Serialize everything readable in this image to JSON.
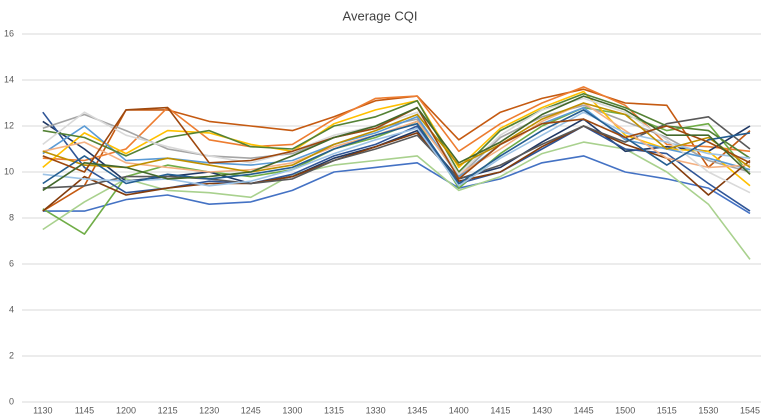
{
  "chart_data": {
    "type": "line",
    "title": "Average CQI",
    "categories": [
      "1130",
      "1145",
      "1200",
      "1215",
      "1230",
      "1245",
      "1300",
      "1315",
      "1330",
      "1345",
      "1400",
      "1415",
      "1430",
      "1445",
      "1500",
      "1515",
      "1530",
      "1545"
    ],
    "ylim": [
      0,
      16
    ],
    "yticks": [
      0,
      2,
      4,
      6,
      8,
      10,
      12,
      14,
      16
    ],
    "grid": true,
    "series": [
      {
        "color": "#c55a11",
        "values": [
          8.3,
          9.4,
          12.7,
          12.7,
          12.2,
          12.0,
          11.8,
          12.4,
          13.1,
          13.3,
          11.4,
          12.6,
          13.2,
          13.6,
          13.0,
          12.9,
          10.2,
          11.8
        ]
      },
      {
        "color": "#ed7d31",
        "values": [
          10.6,
          10.5,
          11.0,
          12.8,
          11.4,
          11.1,
          11.2,
          12.3,
          13.2,
          13.3,
          10.9,
          12.1,
          13.0,
          13.7,
          12.9,
          11.2,
          11.1,
          10.9
        ]
      },
      {
        "color": "#4472c4",
        "values": [
          8.3,
          8.3,
          8.8,
          9.0,
          8.6,
          8.7,
          9.2,
          10.0,
          10.2,
          10.4,
          9.3,
          9.7,
          10.4,
          10.7,
          10.0,
          9.7,
          9.3,
          8.2
        ]
      },
      {
        "color": "#a9d18e",
        "values": [
          7.5,
          8.7,
          9.7,
          9.2,
          9.1,
          8.9,
          9.9,
          10.3,
          10.5,
          10.7,
          9.2,
          9.8,
          10.8,
          11.3,
          11.0,
          10.0,
          8.6,
          6.2
        ]
      },
      {
        "color": "#70ad47",
        "values": [
          8.4,
          7.3,
          9.8,
          10.3,
          10.0,
          9.8,
          10.1,
          11.0,
          11.5,
          12.2,
          9.3,
          10.8,
          12.0,
          12.8,
          12.5,
          11.8,
          12.1,
          9.9
        ]
      },
      {
        "color": "#203864",
        "values": [
          12.2,
          11.0,
          9.6,
          9.8,
          10.0,
          9.5,
          9.8,
          10.6,
          11.1,
          11.8,
          9.7,
          10.2,
          11.3,
          12.3,
          10.9,
          11.1,
          10.9,
          12.0
        ]
      },
      {
        "color": "#2f5597",
        "values": [
          12.6,
          10.2,
          9.1,
          9.3,
          9.6,
          9.5,
          9.9,
          10.7,
          11.2,
          12.0,
          9.5,
          10.0,
          11.0,
          12.0,
          11.0,
          10.8,
          9.5,
          8.3
        ]
      },
      {
        "color": "#a5a5a5",
        "values": [
          11.9,
          12.5,
          11.8,
          11.0,
          10.7,
          10.6,
          10.8,
          11.5,
          11.9,
          12.3,
          9.8,
          11.5,
          12.4,
          12.9,
          12.2,
          11.5,
          10.5,
          10.0
        ]
      },
      {
        "color": "#ffc000",
        "values": [
          10.2,
          11.7,
          10.8,
          11.8,
          11.7,
          11.2,
          10.9,
          12.1,
          12.7,
          13.1,
          10.2,
          11.9,
          12.8,
          13.5,
          11.6,
          11.0,
          10.9,
          9.4
        ]
      },
      {
        "color": "#5b9bd5",
        "values": [
          10.8,
          12.0,
          10.5,
          10.6,
          10.4,
          10.3,
          10.5,
          11.2,
          11.7,
          12.4,
          9.8,
          11.2,
          12.1,
          12.8,
          11.4,
          11.0,
          10.6,
          10.1
        ]
      },
      {
        "color": "#843c0c",
        "values": [
          8.3,
          9.8,
          9.0,
          9.3,
          9.5,
          9.5,
          9.8,
          10.5,
          11.1,
          11.7,
          9.6,
          10.0,
          11.1,
          12.0,
          11.2,
          10.6,
          9.0,
          10.5
        ]
      },
      {
        "color": "#595959",
        "values": [
          9.3,
          9.4,
          9.8,
          9.8,
          9.7,
          9.5,
          9.7,
          10.5,
          11.0,
          11.6,
          9.7,
          10.3,
          11.2,
          12.0,
          11.3,
          12.1,
          12.4,
          11.0
        ]
      },
      {
        "color": "#548235",
        "values": [
          11.8,
          11.5,
          10.7,
          11.5,
          11.8,
          11.1,
          11.0,
          12.0,
          12.4,
          13.1,
          10.0,
          11.8,
          12.7,
          13.4,
          12.8,
          12.0,
          11.8,
          10.6
        ]
      },
      {
        "color": "#f4b183",
        "values": [
          10.9,
          11.3,
          10.4,
          10.2,
          10.0,
          10.1,
          10.4,
          11.1,
          11.6,
          12.2,
          9.9,
          11.0,
          12.2,
          13.0,
          11.8,
          10.6,
          10.2,
          10.3
        ]
      },
      {
        "color": "#9dc3e6",
        "values": [
          9.9,
          9.7,
          9.6,
          9.7,
          9.4,
          9.6,
          10.1,
          10.8,
          11.4,
          11.9,
          9.4,
          10.6,
          11.6,
          12.6,
          11.7,
          11.3,
          10.8,
          10.6
        ]
      },
      {
        "color": "#d9d9d9",
        "values": [
          11.2,
          12.6,
          11.6,
          11.1,
          10.7,
          10.4,
          10.9,
          11.6,
          12.0,
          12.6,
          9.9,
          11.6,
          12.7,
          13.2,
          12.6,
          11.4,
          10.0,
          9.1
        ]
      },
      {
        "color": "#bf9000",
        "values": [
          10.9,
          10.3,
          10.2,
          10.6,
          10.3,
          10.0,
          10.3,
          11.2,
          11.8,
          12.5,
          10.3,
          11.2,
          12.3,
          13.0,
          12.5,
          11.0,
          11.5,
          10.2
        ]
      },
      {
        "color": "#255e91",
        "values": [
          9.5,
          10.7,
          9.5,
          9.9,
          9.7,
          9.9,
          10.2,
          11.0,
          11.6,
          12.1,
          9.5,
          10.7,
          11.8,
          12.7,
          11.5,
          10.3,
          11.4,
          11.7
        ]
      },
      {
        "color": "#9e480e",
        "values": [
          10.7,
          10.0,
          12.7,
          12.8,
          10.4,
          10.5,
          10.9,
          11.5,
          11.9,
          12.8,
          9.7,
          11.2,
          12.1,
          12.3,
          11.5,
          12.0,
          11.3,
          10.4
        ]
      },
      {
        "color": "#43682b",
        "values": [
          9.2,
          10.4,
          10.2,
          9.7,
          9.8,
          10.0,
          10.7,
          11.5,
          12.0,
          12.8,
          10.4,
          11.3,
          12.5,
          13.3,
          12.7,
          11.6,
          11.6,
          9.9
        ]
      }
    ]
  }
}
